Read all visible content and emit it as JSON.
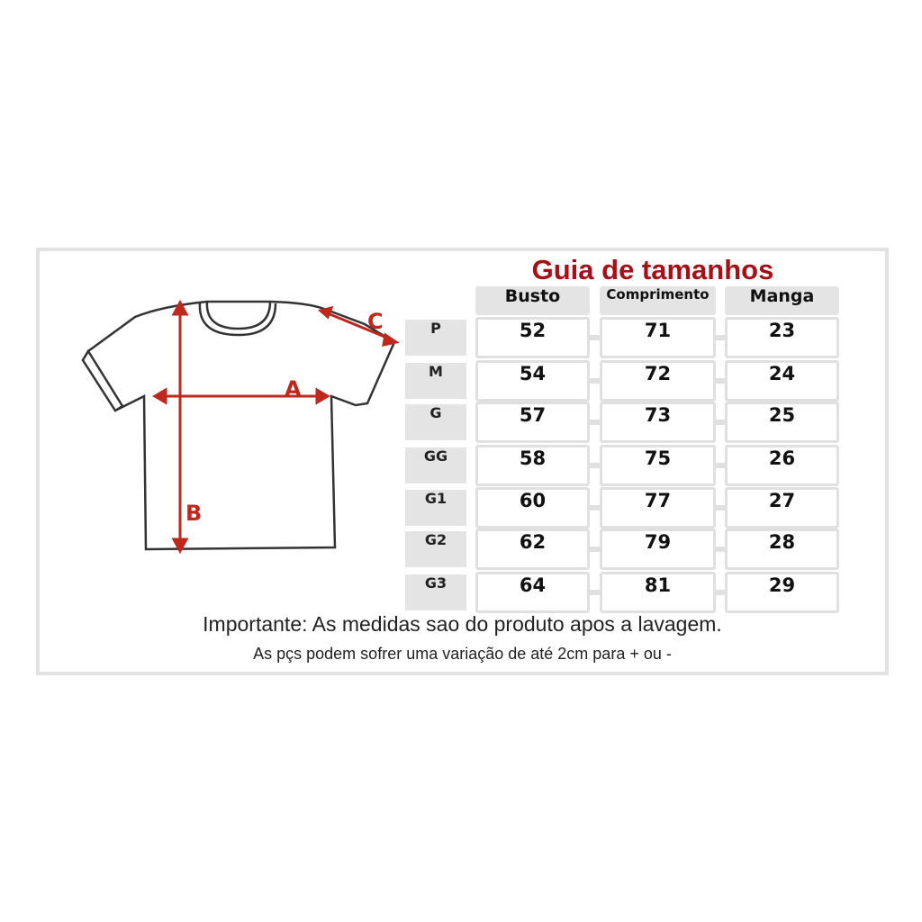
{
  "title": "Guia de tamanhos",
  "diagram": {
    "labels": {
      "a": "A",
      "b": "B",
      "c": "C"
    },
    "arrow_color": "#c0281e"
  },
  "table": {
    "headers": [
      "Busto",
      "Comprimento",
      "Manga"
    ],
    "rows": [
      {
        "size": "P",
        "values": [
          "52",
          "71",
          "23"
        ]
      },
      {
        "size": "M",
        "values": [
          "54",
          "72",
          "24"
        ]
      },
      {
        "size": "G",
        "values": [
          "57",
          "73",
          "25"
        ]
      },
      {
        "size": "GG",
        "values": [
          "58",
          "75",
          "26"
        ]
      },
      {
        "size": "G1",
        "values": [
          "60",
          "77",
          "27"
        ]
      },
      {
        "size": "G2",
        "values": [
          "62",
          "79",
          "28"
        ]
      },
      {
        "size": "G3",
        "values": [
          "64",
          "81",
          "29"
        ]
      }
    ]
  },
  "notes": {
    "important": "Importante: As medidas sao do produto apos a lavagem.",
    "variation": "As pçs podem sofrer uma variação de até 2cm para + ou -"
  },
  "colors": {
    "title": "#a50f15",
    "cell_border": "#e0e0e0",
    "header_bg": "#e4e4e4"
  }
}
